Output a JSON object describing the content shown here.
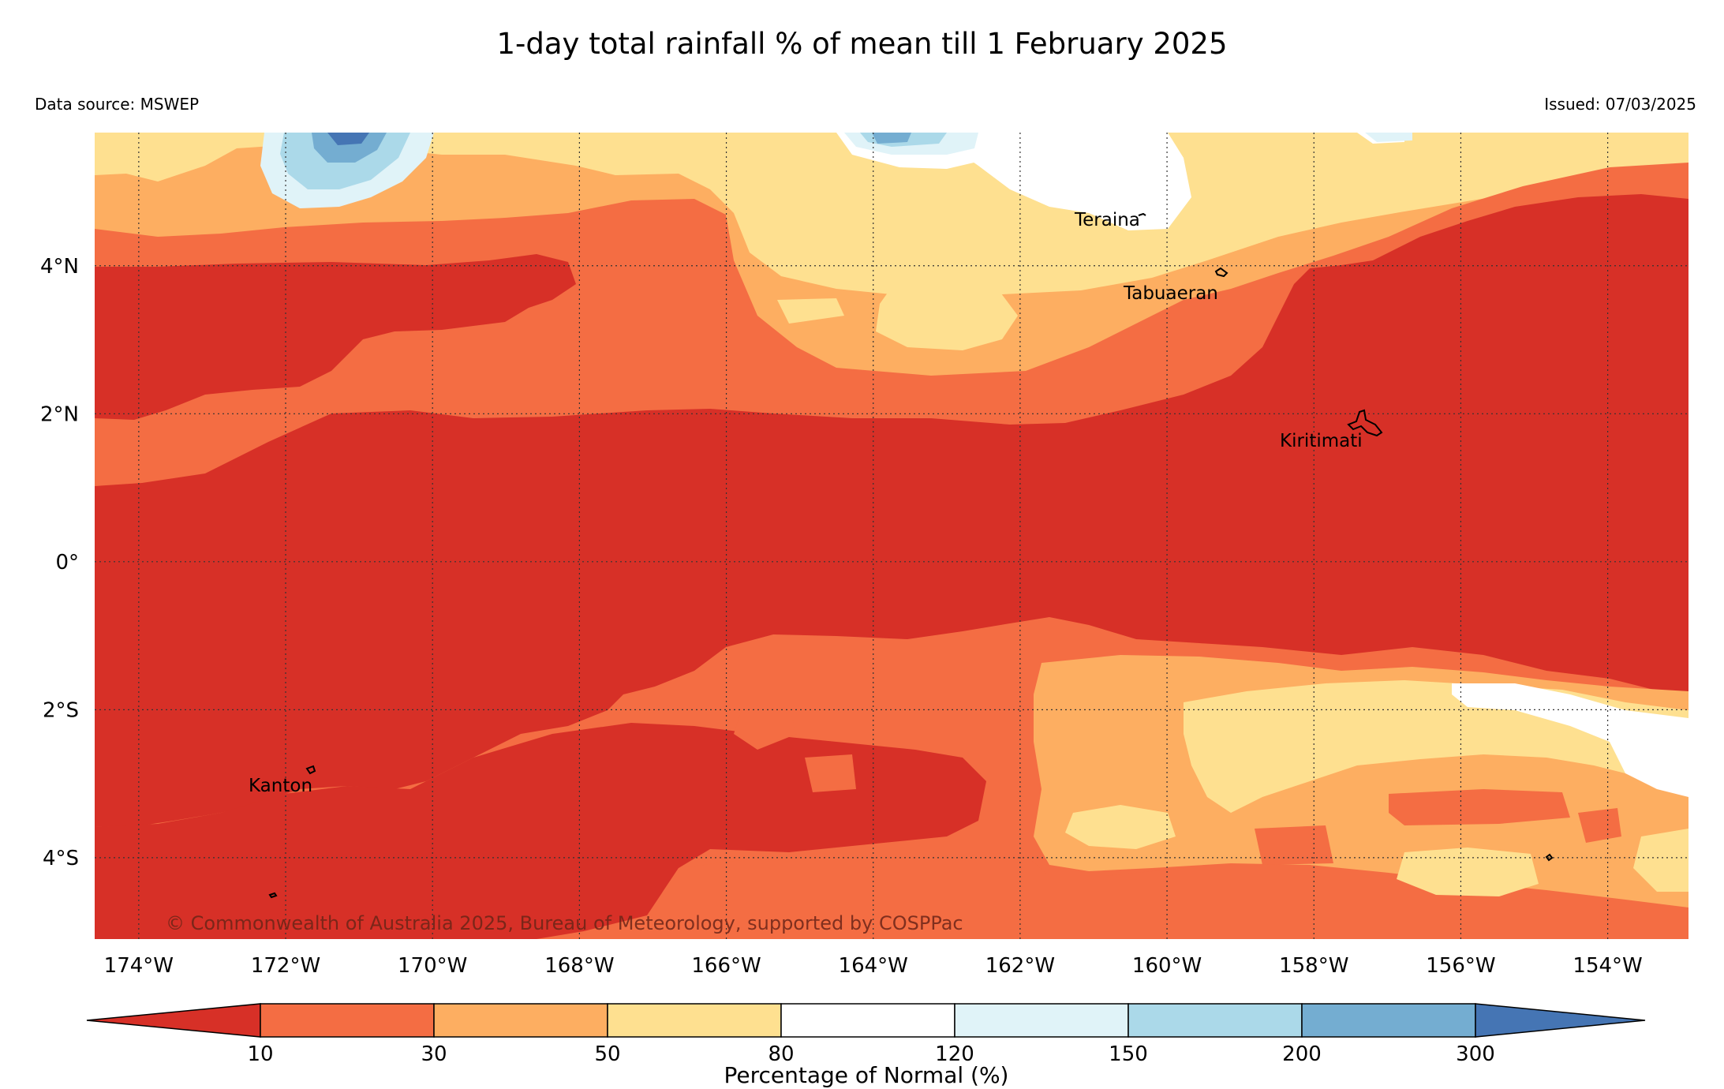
{
  "title": "1-day total rainfall % of mean till 1 February 2025",
  "data_source": "Data source: MSWEP",
  "issued": "Issued: 07/03/2025",
  "copyright": "© Commonwealth of Australia 2025, Bureau of Meteorology, supported by COSPPac",
  "map": {
    "latitude_labels": [
      "4°N",
      "2°N",
      "0°",
      "2°S",
      "4°S"
    ],
    "latitudes": [
      4,
      2,
      0,
      -2,
      -4
    ],
    "longitude_labels": [
      "174°W",
      "172°W",
      "170°W",
      "168°W",
      "166°W",
      "164°W",
      "162°W",
      "160°W",
      "158°W",
      "156°W",
      "154°W"
    ],
    "longitudes": [
      -174,
      -172,
      -170,
      -168,
      -166,
      -164,
      -162,
      -160,
      -158,
      -156,
      -154
    ],
    "extent": {
      "lon_min": -174.6,
      "lon_max": -152.9,
      "lat_min": -5.1,
      "lat_max": 5.8
    },
    "places": [
      {
        "name": "Teraina",
        "lon": -160.4,
        "lat": 4.7
      },
      {
        "name": "Tabuaeran",
        "lon": -159.4,
        "lat": 3.9
      },
      {
        "name": "Kiritimati",
        "lon": -157.4,
        "lat": 1.9
      },
      {
        "name": "Kanton",
        "lon": -171.7,
        "lat": -2.8
      }
    ]
  },
  "colorbar": {
    "title": "Percentage of Normal (%)",
    "ticks": [
      "10",
      "30",
      "50",
      "80",
      "120",
      "150",
      "200",
      "300"
    ],
    "colors": [
      "#d73027",
      "#f46d43",
      "#fdae61",
      "#fee090",
      "#ffffff",
      "#e0f3f8",
      "#abd9e9",
      "#74add1",
      "#4575b4"
    ]
  }
}
